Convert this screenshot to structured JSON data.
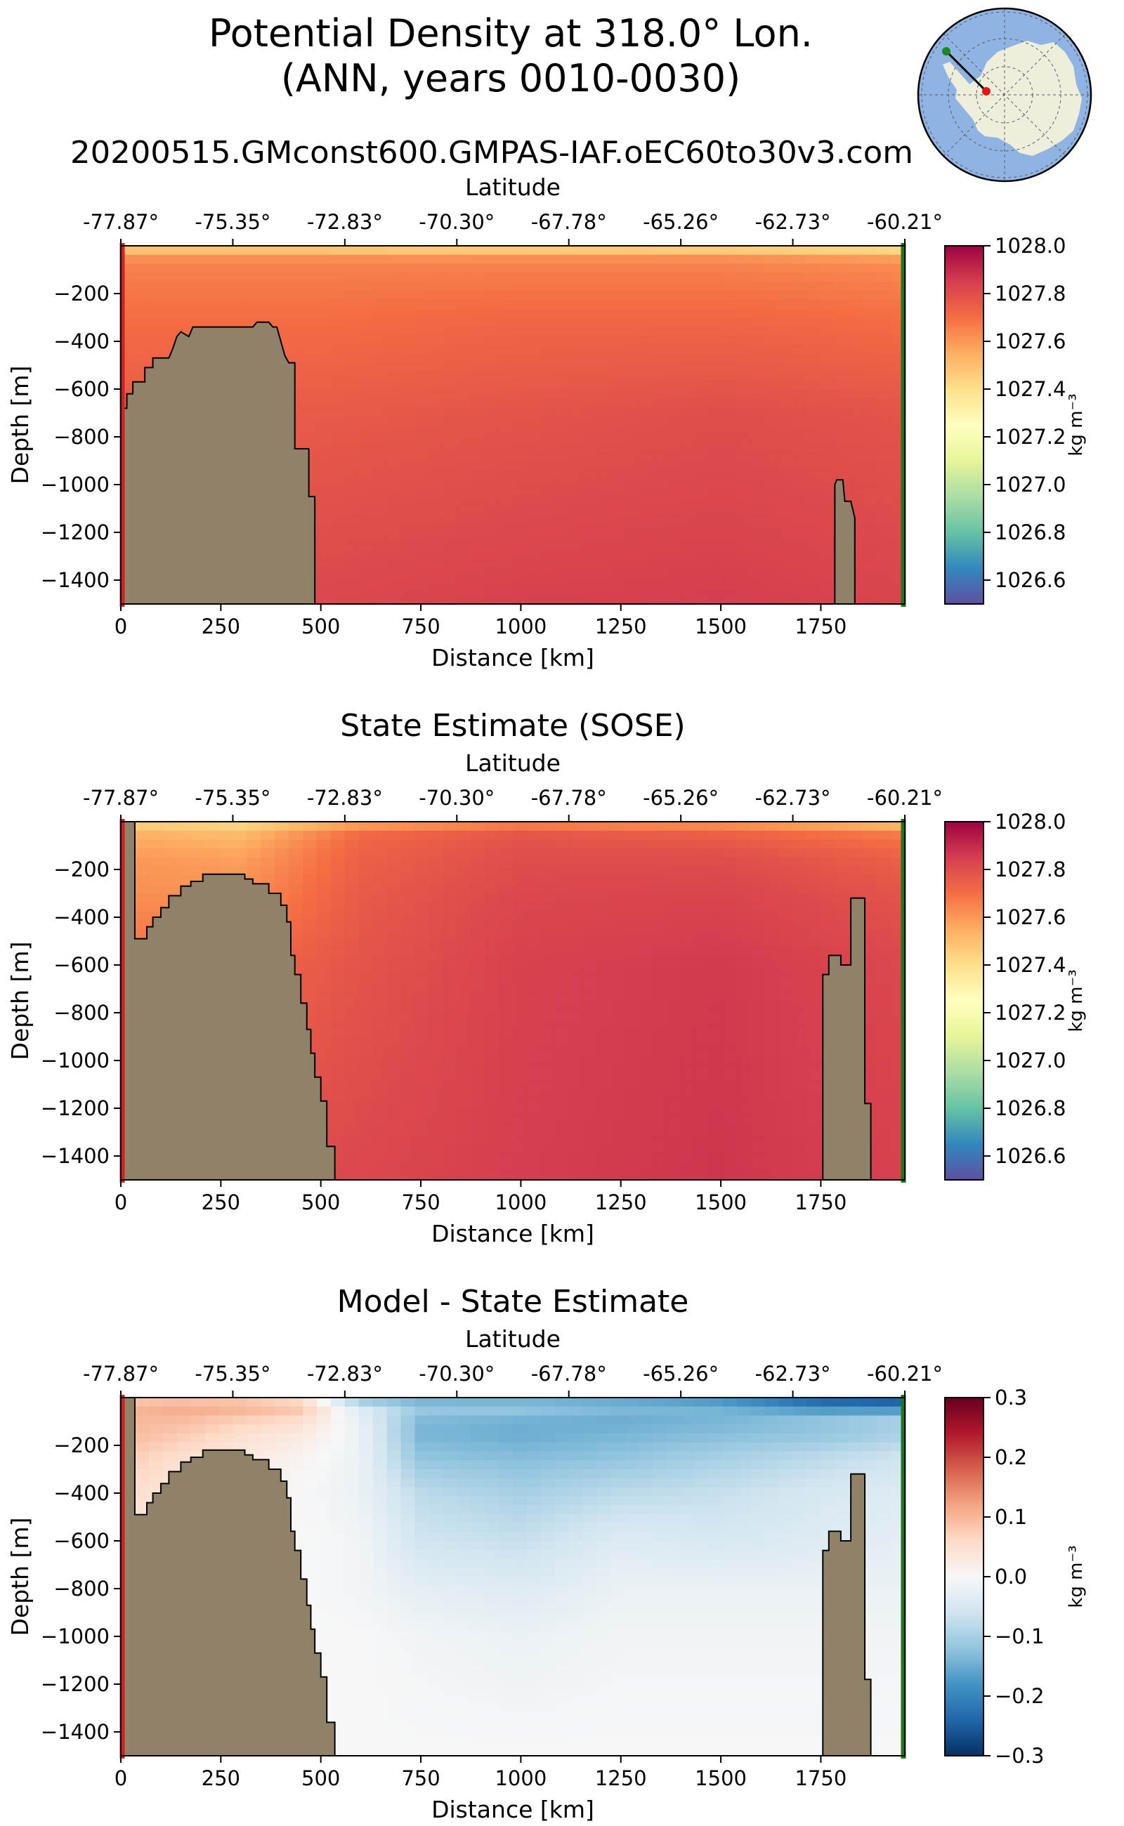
{
  "figure": {
    "title_line1": "Potential Density at 318.0° Lon.",
    "title_line2": "(ANN, years 0010-0030)",
    "subtitle": "20200515.GMconst600.GMPAS-IAF.oEC60to30v3.com"
  },
  "inset_map": {
    "ocean_color": "#8fb4e3",
    "land_color": "#efeedd",
    "start_marker_color": "#1a8a1a",
    "end_marker_color": "#e8141a",
    "transect_color": "#000000"
  },
  "colors": {
    "topography": "#8f8268",
    "left_edge": "#d42020",
    "right_edge": "#1a7a1a",
    "density_cmap": "Spectral_r",
    "difference_cmap": "RdBu_r"
  },
  "chart_data": [
    {
      "type": "heatmap",
      "title": "",
      "xlabel": "Distance [km]",
      "ylabel": "Depth [m]",
      "top_axis_label": "Latitude",
      "xlim": [
        0,
        1960
      ],
      "ylim": [
        -1500,
        0
      ],
      "xticks": [
        0,
        250,
        500,
        750,
        1000,
        1250,
        1500,
        1750
      ],
      "xtick_labels": [
        "0",
        "250",
        "500",
        "750",
        "1000",
        "1250",
        "1500",
        "1750"
      ],
      "yticks": [
        -200,
        -400,
        -600,
        -800,
        -1000,
        -1200,
        -1400
      ],
      "ytick_labels": [
        "−200",
        "−400",
        "−600",
        "−800",
        "−1000",
        "−1200",
        "−1400"
      ],
      "top_tick_labels": [
        "-77.87°",
        "-75.35°",
        "-72.83°",
        "-70.30°",
        "-67.78°",
        "-65.26°",
        "-62.73°",
        "-60.21°"
      ],
      "colorbar": {
        "label": "kg m⁻³",
        "min": 1026.5,
        "max": 1028.0,
        "ticks": [
          1028.0,
          1027.8,
          1027.6,
          1027.4,
          1027.2,
          1027.0,
          1026.8,
          1026.6
        ],
        "tick_labels": [
          "1028.0",
          "1027.8",
          "1027.6",
          "1027.4",
          "1027.2",
          "1027.0",
          "1026.8",
          "1026.6"
        ]
      },
      "field": {
        "x": [
          0,
          500,
          1000,
          1500,
          1960
        ],
        "depth": [
          0,
          30,
          50,
          100,
          300,
          700,
          1500
        ],
        "values": [
          [
            1027.38,
            1027.38,
            1027.38,
            1027.38,
            1027.35
          ],
          [
            1027.55,
            1027.55,
            1027.53,
            1027.52,
            1027.48
          ],
          [
            1027.62,
            1027.62,
            1027.62,
            1027.62,
            1027.58
          ],
          [
            1027.66,
            1027.66,
            1027.66,
            1027.66,
            1027.64
          ],
          [
            1027.7,
            1027.7,
            1027.72,
            1027.72,
            1027.7
          ],
          [
            1027.76,
            1027.76,
            1027.78,
            1027.8,
            1027.78
          ],
          [
            1027.8,
            1027.82,
            1027.84,
            1027.85,
            1027.83
          ]
        ]
      },
      "bathymetry": [
        {
          "x": 0,
          "depth": 680
        },
        {
          "x": 15,
          "depth": 680
        },
        {
          "x": 15,
          "depth": 620
        },
        {
          "x": 30,
          "depth": 620
        },
        {
          "x": 30,
          "depth": 570
        },
        {
          "x": 60,
          "depth": 570
        },
        {
          "x": 60,
          "depth": 510
        },
        {
          "x": 80,
          "depth": 510
        },
        {
          "x": 80,
          "depth": 470
        },
        {
          "x": 120,
          "depth": 470
        },
        {
          "x": 130,
          "depth": 430
        },
        {
          "x": 140,
          "depth": 380
        },
        {
          "x": 150,
          "depth": 360
        },
        {
          "x": 170,
          "depth": 380
        },
        {
          "x": 180,
          "depth": 340
        },
        {
          "x": 280,
          "depth": 340
        },
        {
          "x": 330,
          "depth": 340
        },
        {
          "x": 340,
          "depth": 320
        },
        {
          "x": 370,
          "depth": 320
        },
        {
          "x": 380,
          "depth": 340
        },
        {
          "x": 390,
          "depth": 340
        },
        {
          "x": 400,
          "depth": 400
        },
        {
          "x": 410,
          "depth": 460
        },
        {
          "x": 420,
          "depth": 490
        },
        {
          "x": 435,
          "depth": 490
        },
        {
          "x": 435,
          "depth": 850
        },
        {
          "x": 470,
          "depth": 850
        },
        {
          "x": 470,
          "depth": 1050
        },
        {
          "x": 485,
          "depth": 1050
        },
        {
          "x": 485,
          "depth": 1500
        },
        {
          "x": 1785,
          "depth": 1500
        },
        {
          "x": 1785,
          "depth": 1000
        },
        {
          "x": 1790,
          "depth": 980
        },
        {
          "x": 1805,
          "depth": 980
        },
        {
          "x": 1810,
          "depth": 1070
        },
        {
          "x": 1825,
          "depth": 1070
        },
        {
          "x": 1835,
          "depth": 1140
        },
        {
          "x": 1835,
          "depth": 1500
        }
      ]
    },
    {
      "type": "heatmap",
      "title": "State Estimate (SOSE)",
      "xlabel": "Distance [km]",
      "ylabel": "Depth [m]",
      "top_axis_label": "Latitude",
      "xlim": [
        0,
        1960
      ],
      "ylim": [
        -1500,
        0
      ],
      "xticks": [
        0,
        250,
        500,
        750,
        1000,
        1250,
        1500,
        1750
      ],
      "xtick_labels": [
        "0",
        "250",
        "500",
        "750",
        "1000",
        "1250",
        "1500",
        "1750"
      ],
      "yticks": [
        -200,
        -400,
        -600,
        -800,
        -1000,
        -1200,
        -1400
      ],
      "ytick_labels": [
        "−200",
        "−400",
        "−600",
        "−800",
        "−1000",
        "−1200",
        "−1400"
      ],
      "top_tick_labels": [
        "-77.87°",
        "-75.35°",
        "-72.83°",
        "-70.30°",
        "-67.78°",
        "-65.26°",
        "-62.73°",
        "-60.21°"
      ],
      "colorbar": {
        "label": "kg m⁻³",
        "min": 1026.5,
        "max": 1028.0,
        "ticks": [
          1028.0,
          1027.8,
          1027.6,
          1027.4,
          1027.2,
          1027.0,
          1026.8,
          1026.6
        ],
        "tick_labels": [
          "1028.0",
          "1027.8",
          "1027.6",
          "1027.4",
          "1027.2",
          "1027.0",
          "1026.8",
          "1026.6"
        ]
      },
      "field": {
        "x": [
          0,
          300,
          600,
          1000,
          1500,
          1960
        ],
        "depth": [
          0,
          20,
          60,
          150,
          300,
          600,
          1500
        ],
        "values": [
          [
            1027.3,
            1027.3,
            1027.32,
            1027.32,
            1027.33,
            1027.3
          ],
          [
            1027.48,
            1027.45,
            1027.62,
            1027.7,
            1027.66,
            1027.55
          ],
          [
            1027.55,
            1027.52,
            1027.72,
            1027.78,
            1027.75,
            1027.68
          ],
          [
            1027.6,
            1027.58,
            1027.74,
            1027.8,
            1027.8,
            1027.74
          ],
          [
            1027.62,
            1027.62,
            1027.76,
            1027.82,
            1027.83,
            1027.78
          ],
          [
            1027.7,
            1027.72,
            1027.78,
            1027.84,
            1027.86,
            1027.82
          ],
          [
            1027.8,
            1027.8,
            1027.82,
            1027.85,
            1027.87,
            1027.84
          ]
        ]
      },
      "bathymetry": [
        {
          "x": 0,
          "depth": 0
        },
        {
          "x": 35,
          "depth": 0
        },
        {
          "x": 35,
          "depth": 490
        },
        {
          "x": 65,
          "depth": 490
        },
        {
          "x": 65,
          "depth": 440
        },
        {
          "x": 80,
          "depth": 440
        },
        {
          "x": 80,
          "depth": 400
        },
        {
          "x": 100,
          "depth": 400
        },
        {
          "x": 100,
          "depth": 360
        },
        {
          "x": 120,
          "depth": 360
        },
        {
          "x": 120,
          "depth": 310
        },
        {
          "x": 150,
          "depth": 310
        },
        {
          "x": 150,
          "depth": 270
        },
        {
          "x": 175,
          "depth": 270
        },
        {
          "x": 175,
          "depth": 250
        },
        {
          "x": 205,
          "depth": 250
        },
        {
          "x": 205,
          "depth": 220
        },
        {
          "x": 310,
          "depth": 220
        },
        {
          "x": 310,
          "depth": 240
        },
        {
          "x": 330,
          "depth": 240
        },
        {
          "x": 330,
          "depth": 260
        },
        {
          "x": 370,
          "depth": 260
        },
        {
          "x": 370,
          "depth": 300
        },
        {
          "x": 400,
          "depth": 300
        },
        {
          "x": 400,
          "depth": 350
        },
        {
          "x": 415,
          "depth": 350
        },
        {
          "x": 415,
          "depth": 420
        },
        {
          "x": 425,
          "depth": 420
        },
        {
          "x": 425,
          "depth": 560
        },
        {
          "x": 435,
          "depth": 560
        },
        {
          "x": 435,
          "depth": 640
        },
        {
          "x": 450,
          "depth": 640
        },
        {
          "x": 450,
          "depth": 760
        },
        {
          "x": 465,
          "depth": 760
        },
        {
          "x": 465,
          "depth": 870
        },
        {
          "x": 475,
          "depth": 870
        },
        {
          "x": 475,
          "depth": 970
        },
        {
          "x": 485,
          "depth": 970
        },
        {
          "x": 485,
          "depth": 1070
        },
        {
          "x": 500,
          "depth": 1070
        },
        {
          "x": 500,
          "depth": 1170
        },
        {
          "x": 515,
          "depth": 1170
        },
        {
          "x": 515,
          "depth": 1360
        },
        {
          "x": 535,
          "depth": 1360
        },
        {
          "x": 535,
          "depth": 1500
        },
        {
          "x": 1755,
          "depth": 1500
        },
        {
          "x": 1755,
          "depth": 640
        },
        {
          "x": 1770,
          "depth": 640
        },
        {
          "x": 1770,
          "depth": 560
        },
        {
          "x": 1800,
          "depth": 560
        },
        {
          "x": 1800,
          "depth": 600
        },
        {
          "x": 1825,
          "depth": 600
        },
        {
          "x": 1825,
          "depth": 320
        },
        {
          "x": 1860,
          "depth": 320
        },
        {
          "x": 1860,
          "depth": 1180
        },
        {
          "x": 1875,
          "depth": 1180
        },
        {
          "x": 1875,
          "depth": 1500
        }
      ]
    },
    {
      "type": "heatmap",
      "title": "Model - State Estimate",
      "xlabel": "Distance [km]",
      "ylabel": "Depth [m]",
      "top_axis_label": "Latitude",
      "xlim": [
        0,
        1960
      ],
      "ylim": [
        -1500,
        0
      ],
      "xticks": [
        0,
        250,
        500,
        750,
        1000,
        1250,
        1500,
        1750
      ],
      "xtick_labels": [
        "0",
        "250",
        "500",
        "750",
        "1000",
        "1250",
        "1500",
        "1750"
      ],
      "yticks": [
        -200,
        -400,
        -600,
        -800,
        -1000,
        -1200,
        -1400
      ],
      "ytick_labels": [
        "−200",
        "−400",
        "−600",
        "−800",
        "−1000",
        "−1200",
        "−1400"
      ],
      "top_tick_labels": [
        "-77.87°",
        "-75.35°",
        "-72.83°",
        "-70.30°",
        "-67.78°",
        "-65.26°",
        "-62.73°",
        "-60.21°"
      ],
      "colorbar": {
        "label": "kg m⁻³",
        "min": -0.3,
        "max": 0.3,
        "ticks": [
          0.3,
          0.2,
          0.1,
          0.0,
          -0.1,
          -0.2,
          -0.3
        ],
        "tick_labels": [
          "0.3",
          "0.2",
          "0.1",
          "0.0",
          "−0.1",
          "−0.2",
          "−0.3"
        ]
      },
      "field": {
        "x": [
          0,
          150,
          300,
          450,
          600,
          750,
          1000,
          1250,
          1500,
          1750,
          1960
        ],
        "depth": [
          0,
          30,
          80,
          150,
          250,
          400,
          600,
          800,
          1000,
          1500
        ],
        "values": [
          [
            0.06,
            0.05,
            0.03,
            0.0,
            -0.18,
            -0.2,
            -0.2,
            -0.2,
            -0.22,
            -0.25,
            -0.25
          ],
          [
            0.1,
            0.12,
            0.12,
            0.1,
            -0.05,
            -0.1,
            -0.1,
            -0.12,
            -0.14,
            -0.22,
            -0.24
          ],
          [
            0.1,
            0.1,
            0.08,
            0.06,
            -0.03,
            -0.13,
            -0.14,
            -0.15,
            -0.14,
            -0.12,
            -0.1
          ],
          [
            0.1,
            0.08,
            0.05,
            0.03,
            -0.02,
            -0.14,
            -0.15,
            -0.14,
            -0.13,
            -0.12,
            -0.1
          ],
          [
            0.08,
            0.05,
            0.03,
            0.01,
            -0.02,
            -0.12,
            -0.13,
            -0.12,
            -0.1,
            -0.08,
            -0.06
          ],
          [
            0.06,
            0.03,
            0.02,
            0.0,
            -0.02,
            -0.08,
            -0.1,
            -0.08,
            -0.07,
            -0.05,
            -0.04
          ],
          [
            0.03,
            0.02,
            0.01,
            0.0,
            -0.01,
            -0.06,
            -0.07,
            -0.04,
            -0.05,
            -0.04,
            -0.03
          ],
          [
            0.0,
            0.0,
            0.0,
            0.0,
            -0.01,
            -0.03,
            -0.04,
            -0.02,
            -0.02,
            -0.02,
            -0.02
          ],
          [
            0.0,
            0.0,
            0.0,
            0.0,
            0.0,
            -0.01,
            -0.02,
            -0.01,
            -0.01,
            -0.01,
            -0.01
          ],
          [
            0.0,
            0.0,
            0.0,
            0.0,
            0.0,
            0.0,
            0.0,
            0.0,
            0.0,
            0.0,
            0.0
          ]
        ]
      },
      "bathymetry": [
        {
          "x": 0,
          "depth": 0
        },
        {
          "x": 35,
          "depth": 0
        },
        {
          "x": 35,
          "depth": 490
        },
        {
          "x": 65,
          "depth": 490
        },
        {
          "x": 65,
          "depth": 440
        },
        {
          "x": 80,
          "depth": 440
        },
        {
          "x": 80,
          "depth": 400
        },
        {
          "x": 100,
          "depth": 400
        },
        {
          "x": 100,
          "depth": 360
        },
        {
          "x": 120,
          "depth": 360
        },
        {
          "x": 120,
          "depth": 310
        },
        {
          "x": 150,
          "depth": 310
        },
        {
          "x": 150,
          "depth": 270
        },
        {
          "x": 175,
          "depth": 270
        },
        {
          "x": 175,
          "depth": 250
        },
        {
          "x": 205,
          "depth": 250
        },
        {
          "x": 205,
          "depth": 220
        },
        {
          "x": 310,
          "depth": 220
        },
        {
          "x": 310,
          "depth": 240
        },
        {
          "x": 330,
          "depth": 240
        },
        {
          "x": 330,
          "depth": 260
        },
        {
          "x": 370,
          "depth": 260
        },
        {
          "x": 370,
          "depth": 300
        },
        {
          "x": 400,
          "depth": 300
        },
        {
          "x": 400,
          "depth": 350
        },
        {
          "x": 415,
          "depth": 350
        },
        {
          "x": 415,
          "depth": 420
        },
        {
          "x": 425,
          "depth": 420
        },
        {
          "x": 425,
          "depth": 560
        },
        {
          "x": 435,
          "depth": 560
        },
        {
          "x": 435,
          "depth": 640
        },
        {
          "x": 450,
          "depth": 640
        },
        {
          "x": 450,
          "depth": 760
        },
        {
          "x": 465,
          "depth": 760
        },
        {
          "x": 465,
          "depth": 870
        },
        {
          "x": 475,
          "depth": 870
        },
        {
          "x": 475,
          "depth": 970
        },
        {
          "x": 485,
          "depth": 970
        },
        {
          "x": 485,
          "depth": 1070
        },
        {
          "x": 500,
          "depth": 1070
        },
        {
          "x": 500,
          "depth": 1170
        },
        {
          "x": 515,
          "depth": 1170
        },
        {
          "x": 515,
          "depth": 1360
        },
        {
          "x": 535,
          "depth": 1360
        },
        {
          "x": 535,
          "depth": 1500
        },
        {
          "x": 1755,
          "depth": 1500
        },
        {
          "x": 1755,
          "depth": 640
        },
        {
          "x": 1770,
          "depth": 640
        },
        {
          "x": 1770,
          "depth": 560
        },
        {
          "x": 1800,
          "depth": 560
        },
        {
          "x": 1800,
          "depth": 600
        },
        {
          "x": 1825,
          "depth": 600
        },
        {
          "x": 1825,
          "depth": 320
        },
        {
          "x": 1860,
          "depth": 320
        },
        {
          "x": 1860,
          "depth": 1180
        },
        {
          "x": 1875,
          "depth": 1180
        },
        {
          "x": 1875,
          "depth": 1500
        }
      ]
    }
  ]
}
